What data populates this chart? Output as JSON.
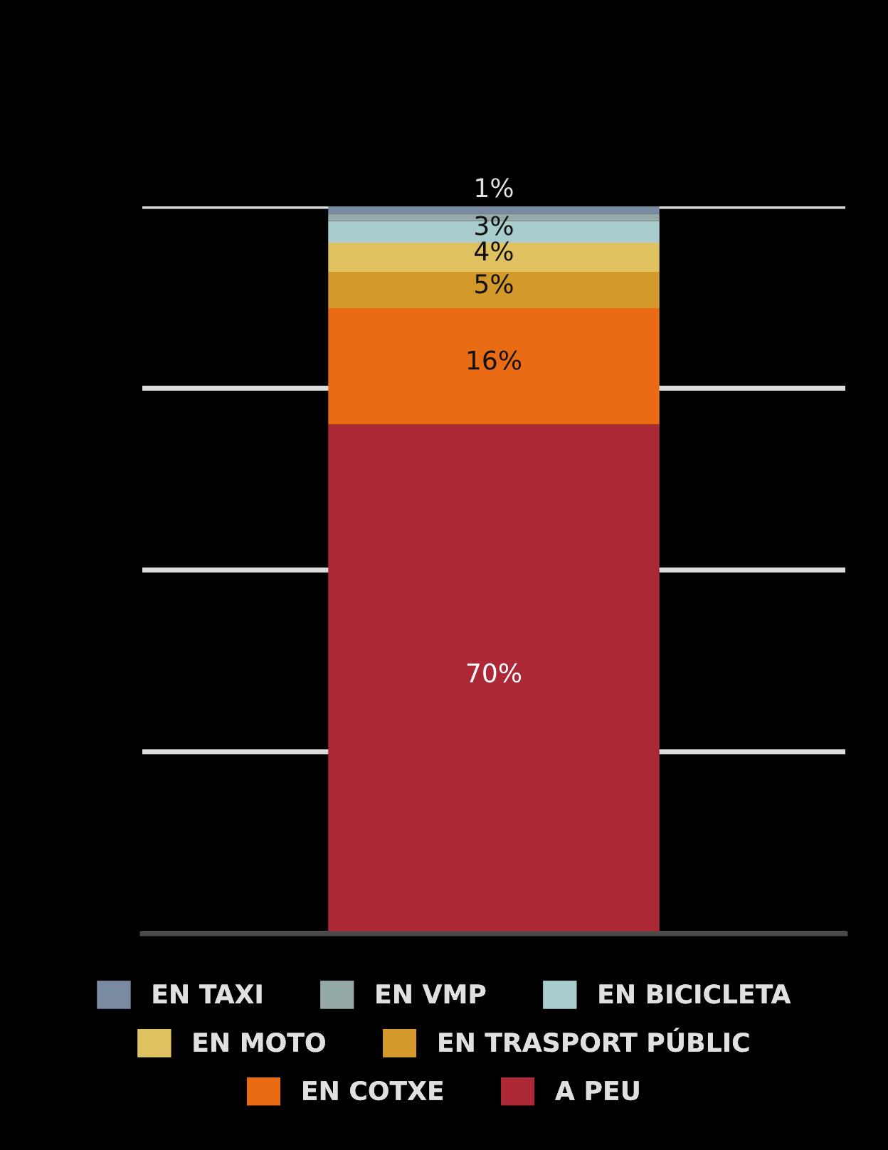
{
  "chart_data": {
    "type": "bar",
    "stacked": true,
    "categories": [
      null
    ],
    "ylim": [
      0,
      100
    ],
    "yticks": [
      {
        "value": 0,
        "label": null
      },
      {
        "value": 25,
        "label": null
      },
      {
        "value": 50,
        "label": null
      },
      {
        "value": 75,
        "label": null
      },
      {
        "value": 100,
        "label": null
      }
    ],
    "grid": "y",
    "legend": "bottom",
    "series": [
      {
        "name": "A PEU",
        "color": "#ad2836",
        "values": [
          70
        ],
        "value_labels": [
          "70%"
        ]
      },
      {
        "name": "EN COTXE",
        "color": "#e96b14",
        "values": [
          16
        ],
        "value_labels": [
          "16%"
        ]
      },
      {
        "name": "EN TRASPORT PÚBLIC",
        "color": "#d39a2b",
        "values": [
          5
        ],
        "value_labels": [
          "5%"
        ]
      },
      {
        "name": "EN MOTO",
        "color": "#dfc25f",
        "values": [
          4
        ],
        "value_labels": [
          "4%"
        ]
      },
      {
        "name": "EN BICICLETA",
        "color": "#a9cccc",
        "values": [
          3
        ],
        "value_labels": [
          "3%"
        ]
      },
      {
        "name": "EN VMP",
        "color": "#95a9a8",
        "values": [
          1
        ],
        "value_labels": [
          null
        ]
      },
      {
        "name": "EN TAXI",
        "color": "#7a8aa0",
        "values": [
          1
        ],
        "value_labels": [
          "1%"
        ]
      }
    ]
  }
}
